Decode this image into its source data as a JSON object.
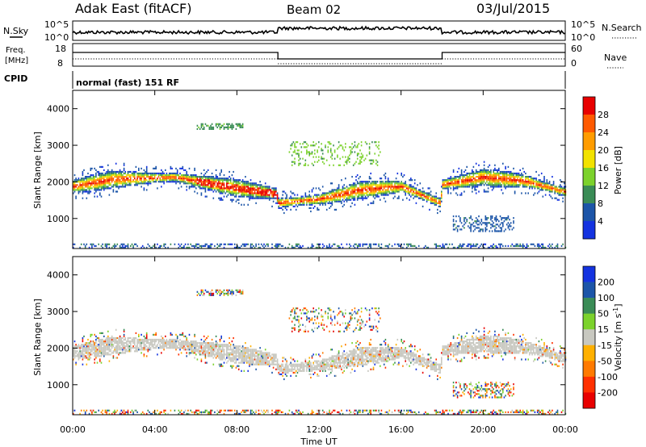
{
  "header": {
    "station": "Adak East (fitACF)",
    "beam": "Beam 02",
    "date": "03/Jul/2015"
  },
  "panels": {
    "nsky_label": "N.Sky",
    "nsearch_label": "N.Search",
    "freq_label_top": "Freq.",
    "freq_label_unit": "[MHz]",
    "nave_label": "Nave",
    "cpid_label": "CPID",
    "cpid_text": "normal (fast) 151 RF",
    "noise_ticks": [
      "10^5",
      "10^0"
    ],
    "freq_ticks": [
      "18",
      "8"
    ],
    "nave_ticks": [
      "60",
      "0"
    ]
  },
  "chart_data": [
    {
      "type": "heatmap",
      "title": "",
      "quantity": "Power",
      "colorbar_label": "Power [dB]",
      "colorbar_ticks": [
        "28",
        "24",
        "20",
        "16",
        "12",
        "8",
        "4"
      ],
      "colorbar_colors": [
        "#e80000",
        "#ff5a00",
        "#ff9c00",
        "#f2e200",
        "#7cd22c",
        "#3a8c56",
        "#1c55a8",
        "#1433e0"
      ],
      "ylabel": "Slant Range [km]",
      "y_ticks": [
        "4000",
        "3000",
        "2000",
        "1000"
      ],
      "ylim": [
        180,
        4500
      ],
      "xlim_hours": [
        0,
        24
      ],
      "band_center_km": [
        [
          0,
          1850
        ],
        [
          2,
          2050
        ],
        [
          5,
          2100
        ],
        [
          8,
          1800
        ],
        [
          9.9,
          1650
        ],
        [
          10,
          1400
        ],
        [
          12,
          1500
        ],
        [
          14,
          1750
        ],
        [
          16,
          1850
        ],
        [
          17.9,
          1400
        ],
        [
          18,
          1900
        ],
        [
          20,
          2100
        ],
        [
          22,
          2000
        ],
        [
          24,
          1700
        ]
      ]
    },
    {
      "type": "heatmap",
      "title": "",
      "quantity": "Velocity",
      "colorbar_label": "Velocity [m s^-1]",
      "colorbar_ticks": [
        "200",
        "100",
        "50",
        "15",
        "-15",
        "-50",
        "-100",
        "-200"
      ],
      "colorbar_colors": [
        "#1433e0",
        "#1c55a8",
        "#3a8c56",
        "#7cd22c",
        "#c8c8c0",
        "#ffb000",
        "#ff7a00",
        "#ff3000",
        "#e80000"
      ],
      "ylabel": "Slant Range [km]",
      "y_ticks": [
        "4000",
        "3000",
        "2000",
        "1000"
      ],
      "ylim": [
        180,
        4500
      ],
      "x_ticks": [
        "00:00",
        "04:00",
        "08:00",
        "12:00",
        "16:00",
        "20:00",
        "00:00"
      ],
      "xlabel": "Time UT",
      "xlim_hours": [
        0,
        24
      ]
    }
  ]
}
